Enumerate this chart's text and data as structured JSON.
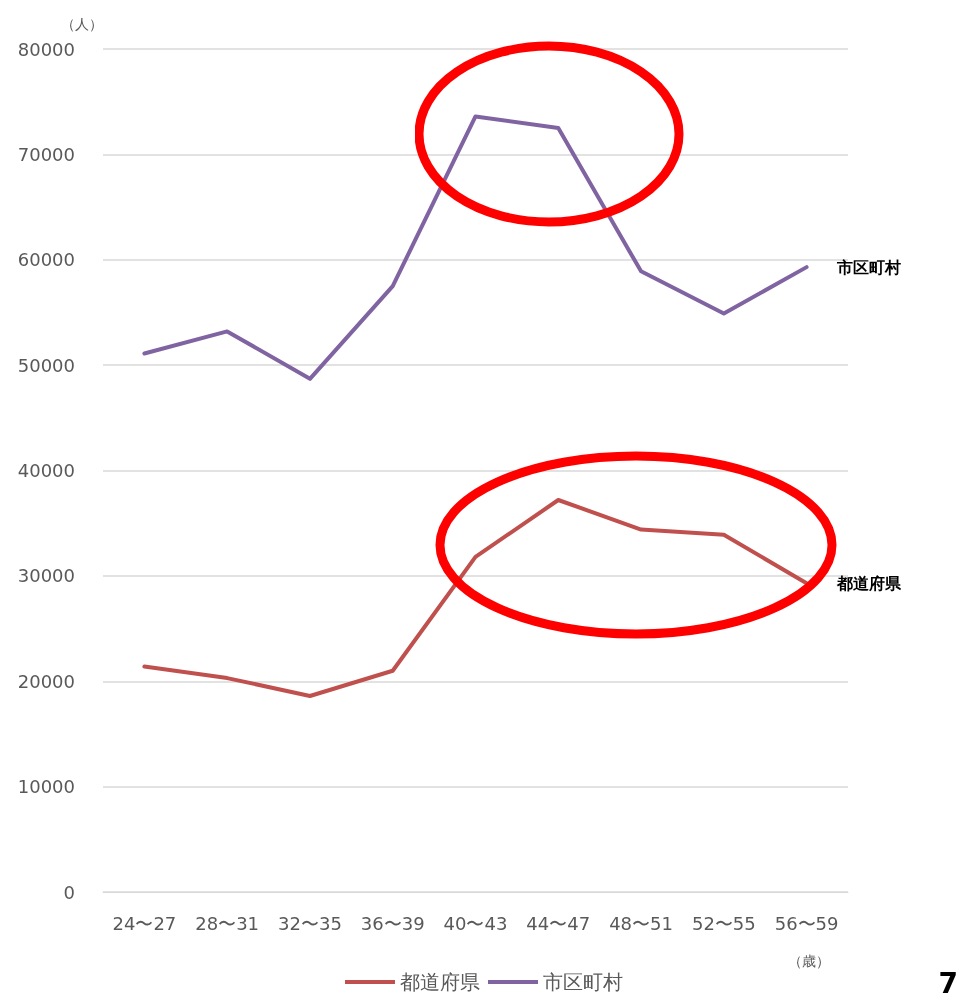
{
  "chart_data": {
    "type": "line",
    "ylabel": "（人）",
    "xlabel": "（歳）",
    "categories": [
      "24〜27",
      "28〜31",
      "32〜35",
      "36〜39",
      "40〜43",
      "44〜47",
      "48〜51",
      "52〜55",
      "56〜59"
    ],
    "series": [
      {
        "name": "都道府県",
        "color": "#c0504d",
        "values": [
          21400,
          20300,
          18600,
          21000,
          31800,
          37200,
          34400,
          33900,
          29300
        ]
      },
      {
        "name": "市区町村",
        "color": "#8064a2",
        "values": [
          51100,
          53200,
          48700,
          57500,
          73600,
          72500,
          58900,
          54900,
          59300
        ]
      }
    ],
    "ylim": [
      0,
      80000
    ],
    "yticks": [
      0,
      10000,
      20000,
      30000,
      40000,
      50000,
      60000,
      70000,
      80000
    ],
    "grid": "y",
    "legend": "bottom",
    "marker": "none",
    "line_style": "solid",
    "annotations": [
      "7"
    ]
  }
}
